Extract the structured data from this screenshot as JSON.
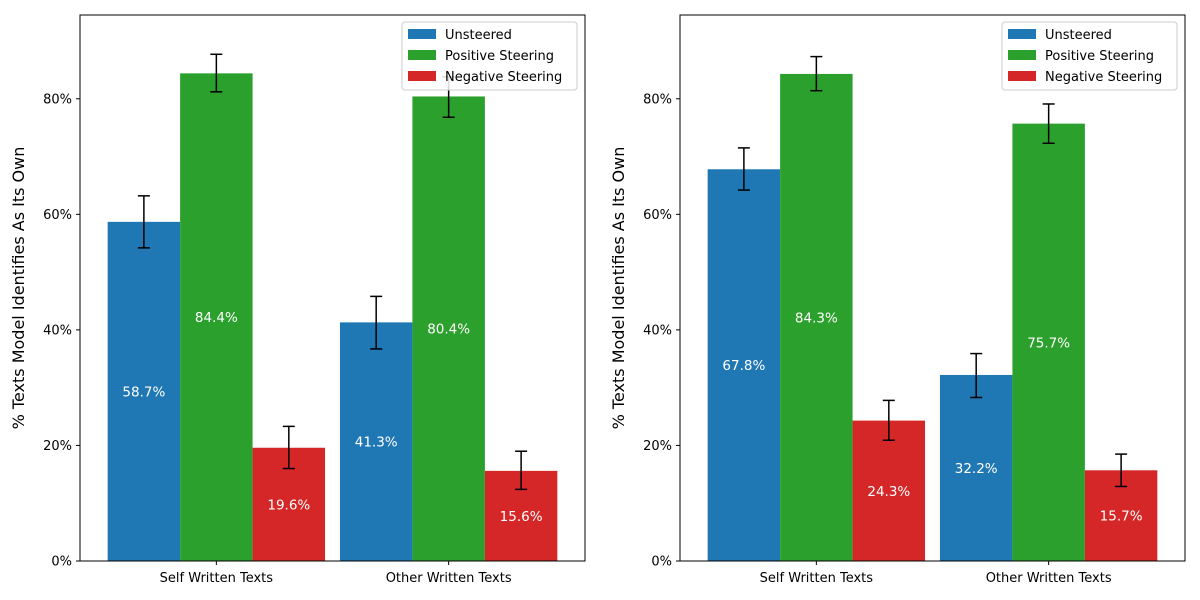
{
  "chart_data": [
    {
      "type": "bar",
      "categories": [
        "Self Written Texts",
        "Other Written Texts"
      ],
      "ylabel": "% Texts Model Identifies As Its Own",
      "ylim": [
        0,
        94.5
      ],
      "yticks": [
        0,
        20,
        40,
        60,
        80
      ],
      "ytick_format": "%",
      "legend_position": "top-right",
      "series": [
        {
          "name": "Unsteered",
          "color": "#1f77b4",
          "values": [
            58.7,
            41.3
          ],
          "labels": [
            "58.7%",
            "41.3%"
          ],
          "err_low": [
            54.2,
            36.7
          ],
          "err_high": [
            63.2,
            45.8
          ]
        },
        {
          "name": "Positive Steering",
          "color": "#2ca02c",
          "values": [
            84.4,
            80.4
          ],
          "labels": [
            "84.4%",
            "80.4%"
          ],
          "err_low": [
            81.2,
            76.8
          ],
          "err_high": [
            87.7,
            83.8
          ]
        },
        {
          "name": "Negative Steering",
          "color": "#d62728",
          "values": [
            19.6,
            15.6
          ],
          "labels": [
            "19.6%",
            "15.6%"
          ],
          "err_low": [
            16.0,
            12.4
          ],
          "err_high": [
            23.3,
            19.0
          ]
        }
      ]
    },
    {
      "type": "bar",
      "categories": [
        "Self Written Texts",
        "Other Written Texts"
      ],
      "ylabel": "% Texts Model Identifies As Its Own",
      "ylim": [
        0,
        94.5
      ],
      "yticks": [
        0,
        20,
        40,
        60,
        80
      ],
      "ytick_format": "%",
      "legend_position": "top-right",
      "series": [
        {
          "name": "Unsteered",
          "color": "#1f77b4",
          "values": [
            67.8,
            32.2
          ],
          "labels": [
            "67.8%",
            "32.2%"
          ],
          "err_low": [
            64.2,
            28.3
          ],
          "err_high": [
            71.5,
            35.9
          ]
        },
        {
          "name": "Positive Steering",
          "color": "#2ca02c",
          "values": [
            84.3,
            75.7
          ],
          "labels": [
            "84.3%",
            "75.7%"
          ],
          "err_low": [
            81.4,
            72.3
          ],
          "err_high": [
            87.3,
            79.1
          ]
        },
        {
          "name": "Negative Steering",
          "color": "#d62728",
          "values": [
            24.3,
            15.7
          ],
          "labels": [
            "24.3%",
            "15.7%"
          ],
          "err_low": [
            20.9,
            12.9
          ],
          "err_high": [
            27.8,
            18.5
          ]
        }
      ]
    }
  ]
}
